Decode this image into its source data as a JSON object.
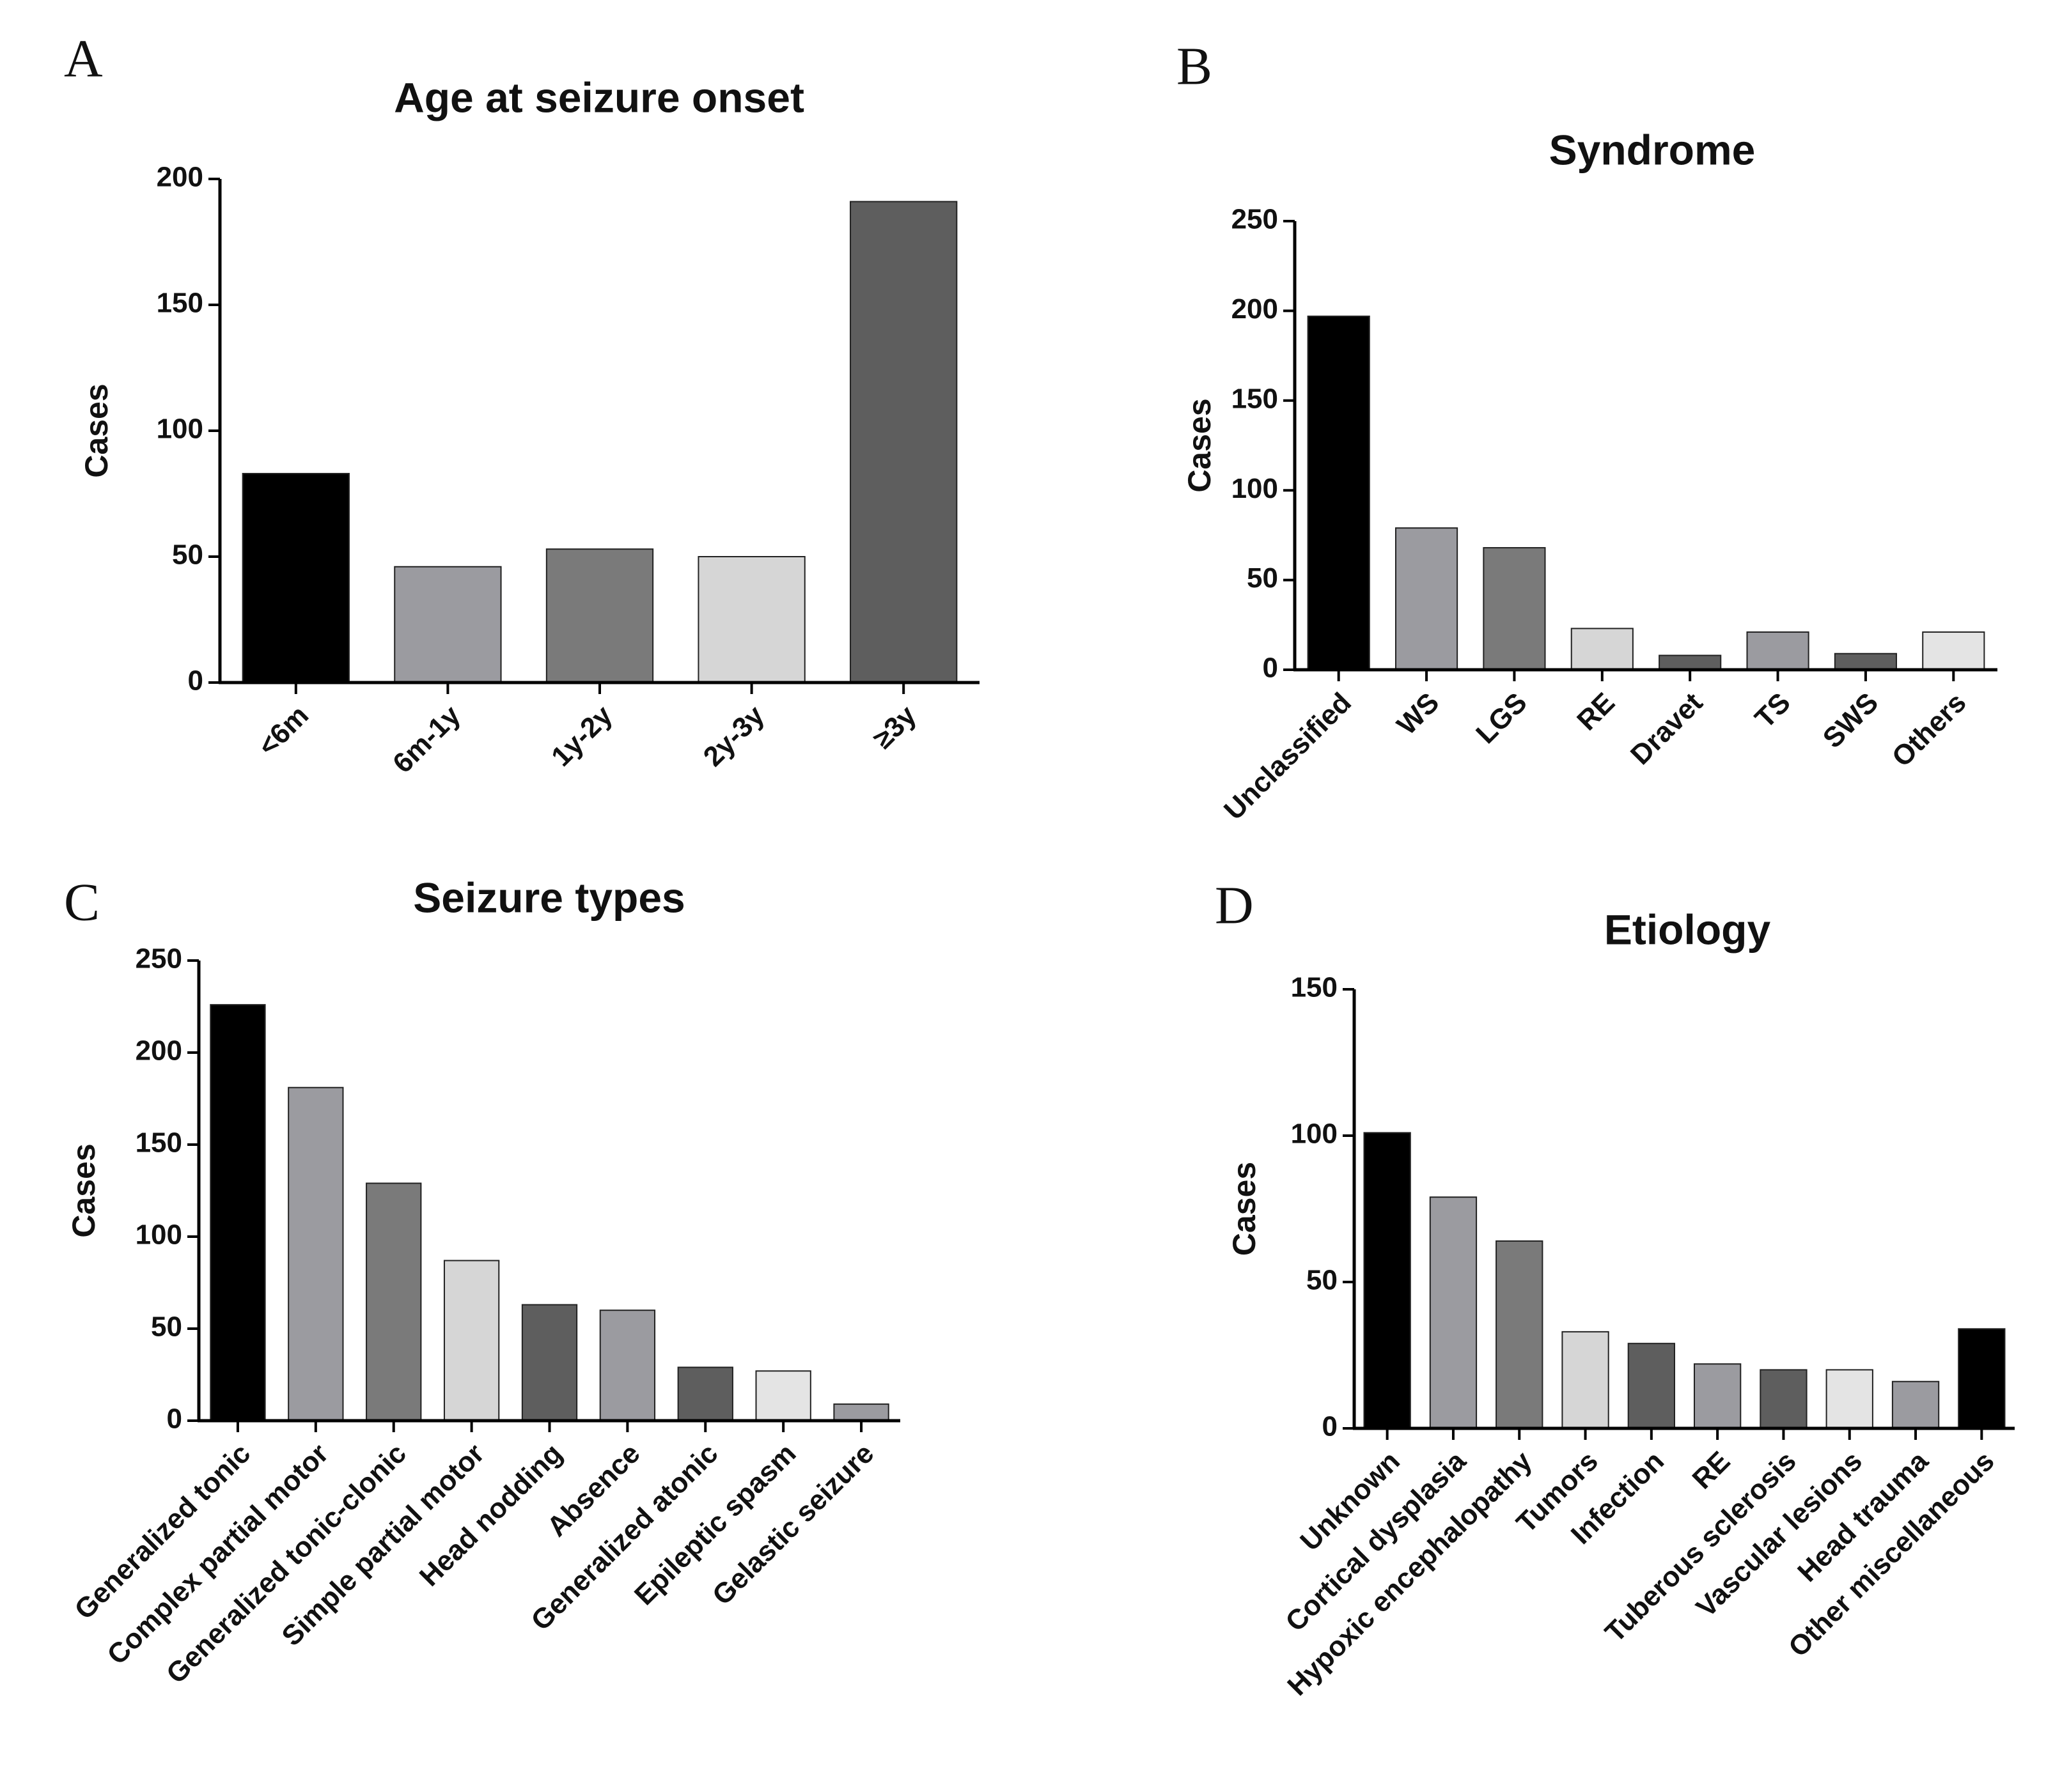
{
  "chart_data": [
    {
      "type": "bar",
      "panel": "A",
      "title": "Age at seizure onset",
      "ylabel": "Cases",
      "categories": [
        "<6m",
        "6m-1y",
        "1y-2y",
        "2y-3y",
        "≥3y"
      ],
      "values": [
        83,
        46,
        53,
        50,
        191
      ],
      "colors": [
        "#000000",
        "#9b9ba0",
        "#7a7a7a",
        "#d6d6d6",
        "#5e5e5e"
      ],
      "ylim": [
        0,
        200
      ],
      "yticks": [
        0,
        50,
        100,
        150,
        200
      ]
    },
    {
      "type": "bar",
      "panel": "B",
      "title": "Syndrome",
      "ylabel": "Cases",
      "categories": [
        "Unclassified",
        "WS",
        "LGS",
        "RE",
        "Dravet",
        "TS",
        "SWS",
        "Others"
      ],
      "values": [
        197,
        79,
        68,
        23,
        8,
        21,
        9,
        21
      ],
      "colors": [
        "#000000",
        "#9b9ba0",
        "#7a7a7a",
        "#d6d6d6",
        "#5e5e5e",
        "#9b9ba0",
        "#5e5e5e",
        "#e4e4e4"
      ],
      "ylim": [
        0,
        250
      ],
      "yticks": [
        0,
        50,
        100,
        150,
        200,
        250
      ]
    },
    {
      "type": "bar",
      "panel": "C",
      "title": "Seizure types",
      "ylabel": "Cases",
      "categories": [
        "Generalized tonic",
        "Complex partial motor",
        "Generalized tonic-clonic",
        "Simple partial motor",
        "Head nodding",
        "Absence",
        "Generalized atonic",
        "Epileptic spasm",
        "Gelastic seizure"
      ],
      "values": [
        226,
        181,
        129,
        87,
        63,
        60,
        29,
        27,
        9
      ],
      "colors": [
        "#000000",
        "#9b9ba0",
        "#7a7a7a",
        "#d6d6d6",
        "#5e5e5e",
        "#9b9ba0",
        "#5e5e5e",
        "#e4e4e4",
        "#9b9ba0"
      ],
      "ylim": [
        0,
        250
      ],
      "yticks": [
        0,
        50,
        100,
        150,
        200,
        250
      ]
    },
    {
      "type": "bar",
      "panel": "D",
      "title": "Etiology",
      "ylabel": "Cases",
      "categories": [
        "Unknown",
        "Cortical dysplasia",
        "Hypoxic encephalopathy",
        "Tumors",
        "Infection",
        "RE",
        "Tuberous sclerosis",
        "Vascular lesions",
        "Head trauma",
        "Other miscellaneous"
      ],
      "values": [
        101,
        79,
        64,
        33,
        29,
        22,
        20,
        20,
        16,
        34
      ],
      "colors": [
        "#000000",
        "#9b9ba0",
        "#7a7a7a",
        "#d6d6d6",
        "#5e5e5e",
        "#9b9ba0",
        "#5e5e5e",
        "#e4e4e4",
        "#9b9ba0",
        "#000000"
      ],
      "ylim": [
        0,
        150
      ],
      "yticks": [
        0,
        50,
        100,
        150
      ]
    }
  ]
}
